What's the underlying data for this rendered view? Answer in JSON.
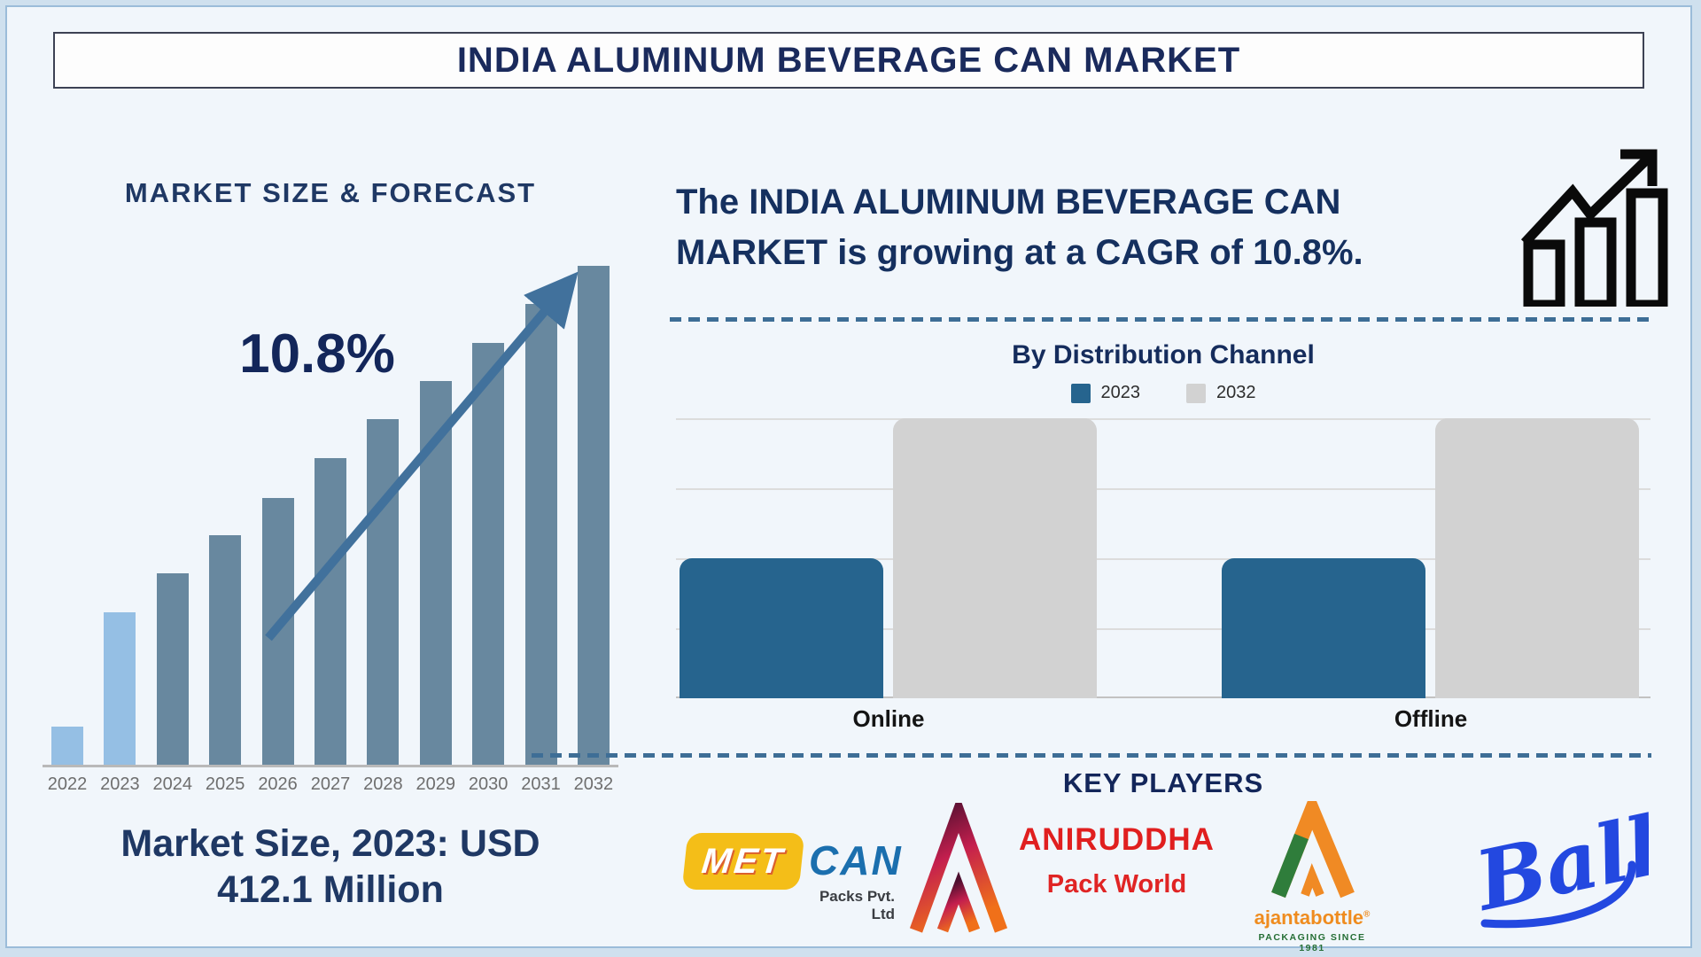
{
  "title": "INDIA ALUMINUM BEVERAGE CAN MARKET",
  "left_panel": {
    "heading": "MARKET SIZE & FORECAST",
    "cagr_label": "10.8%",
    "footer_line1": "Market Size, 2023: USD",
    "footer_line2": "412.1 Million"
  },
  "right_panel": {
    "growth_text": "The INDIA ALUMINUM BEVERAGE CAN MARKET is growing at a CAGR of 10.8%.",
    "distribution_title": "By Distribution Channel",
    "key_players_heading": "KEY PLAYERS",
    "key_players": {
      "metcan": {
        "part1": "MET",
        "part2": "CAN",
        "subtitle": "Packs Pvt. Ltd"
      },
      "aniruddha": {
        "line1": "ANIRUDDHA",
        "line2": "Pack World"
      },
      "ajantabottle": {
        "name": "ajantabottle",
        "reg_mark": "®",
        "tagline": "PACKAGING SINCE 1981"
      },
      "ball": {
        "name": "Ball"
      }
    }
  },
  "colors": {
    "navy_text": "#1a2a5c",
    "forecast_bar_light": "#95bfe4",
    "forecast_bar_dark": "#68889f",
    "trend_arrow": "#41719c",
    "dashed_divider": "#3e6e96",
    "distribution_blue": "#26648e",
    "distribution_gray": "#d2d2d2",
    "axis_gray": "#b9b9b9"
  },
  "chart_data": [
    {
      "id": "market_size_forecast",
      "type": "bar",
      "title": "MARKET SIZE & FORECAST",
      "categories": [
        "2022",
        "2023",
        "2024",
        "2025",
        "2026",
        "2027",
        "2028",
        "2029",
        "2030",
        "2031",
        "2032"
      ],
      "values_pct_of_max": [
        7.6,
        30.5,
        38.3,
        46.0,
        53.5,
        61.4,
        69.2,
        76.9,
        84.5,
        92.3,
        100
      ],
      "known_values": {
        "2023": "USD 412.1 Million"
      },
      "annotation": "10.8%",
      "ylabel": "",
      "xlabel": "",
      "grid": false,
      "bar_colors": {
        "2022": "#95bfe4",
        "2023": "#95bfe4",
        "default": "#68889f"
      },
      "notes": "Y axis unlabeled; values are relative bar heights as % of the 2032 bar. Trend arrow annotated with CAGR 10.8%."
    },
    {
      "id": "by_distribution_channel",
      "type": "bar",
      "title": "By Distribution Channel",
      "categories": [
        "Online",
        "Offline"
      ],
      "series": [
        {
          "name": "2023",
          "values_pct": [
            50,
            50
          ],
          "color": "#26648e"
        },
        {
          "name": "2032",
          "values_pct": [
            100,
            100
          ],
          "color": "#d2d2d2"
        }
      ],
      "ylim": [
        0,
        100
      ],
      "grid": true,
      "legend_position": "top",
      "notes": "Y axis unlabeled; values are relative bar heights as % of gridline span."
    }
  ]
}
